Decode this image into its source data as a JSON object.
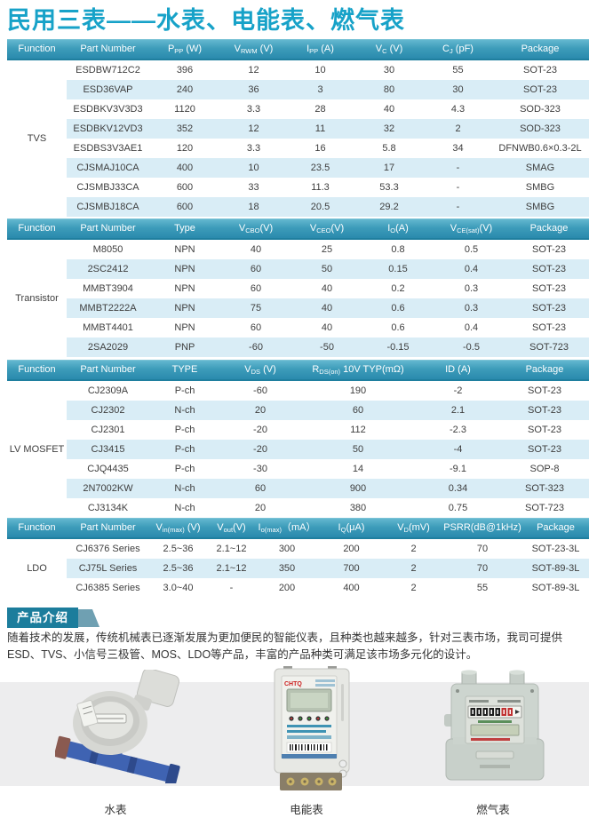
{
  "page": {
    "title": "民用三表——水表、电能表、燃气表"
  },
  "colors": {
    "accent": "#17a2c8",
    "table_header_top": "#63b7cf",
    "table_header_bottom": "#2a8aad",
    "row_stripe": "#d9edf6",
    "badge": "#1c7d9c",
    "image_band": "#ededee"
  },
  "tables": [
    {
      "function_label": "TVS",
      "header": [
        "Function",
        "Part Number",
        [
          "P",
          {
            "sub": "PP"
          },
          " (W)"
        ],
        [
          "V",
          {
            "sub": "RWM"
          },
          " (V)"
        ],
        [
          "I",
          {
            "sub": "PP"
          },
          " (A)"
        ],
        [
          "V",
          {
            "sub": "C"
          },
          " (V)"
        ],
        [
          "C",
          {
            "sub": "J"
          },
          " (pF)"
        ],
        "Package"
      ],
      "rows": [
        [
          "ESDBW712C2",
          "396",
          "12",
          "10",
          "30",
          "55",
          "SOT-23"
        ],
        [
          "ESD36VAP",
          "240",
          "36",
          "3",
          "80",
          "30",
          "SOT-23"
        ],
        [
          "ESDBKV3V3D3",
          "1120",
          "3.3",
          "28",
          "40",
          "4.3",
          "SOD-323"
        ],
        [
          "ESDBKV12VD3",
          "352",
          "12",
          "11",
          "32",
          "2",
          "SOD-323"
        ],
        [
          "ESDBS3V3AE1",
          "120",
          "3.3",
          "16",
          "5.8",
          "34",
          "DFNWB0.6×0.3-2L"
        ],
        [
          "CJSMAJ10CA",
          "400",
          "10",
          "23.5",
          "17",
          "-",
          "SMAG"
        ],
        [
          "CJSMBJ33CA",
          "600",
          "33",
          "11.3",
          "53.3",
          "-",
          "SMBG"
        ],
        [
          "CJSMBJ18CA",
          "600",
          "18",
          "20.5",
          "29.2",
          "-",
          "SMBG"
        ]
      ]
    },
    {
      "function_label": "Transistor",
      "header": [
        "Function",
        "Part Number",
        "Type",
        [
          "V",
          {
            "sub": "CBO"
          },
          "(V)"
        ],
        [
          "V",
          {
            "sub": "CEO"
          },
          "(V)"
        ],
        [
          "I",
          {
            "sub": "O"
          },
          "(A)"
        ],
        [
          "V",
          {
            "sub": "CE(sat)"
          },
          "(V)"
        ],
        "Package"
      ],
      "rows": [
        [
          "M8050",
          "NPN",
          "40",
          "25",
          "0.8",
          "0.5",
          "SOT-23"
        ],
        [
          "2SC2412",
          "NPN",
          "60",
          "50",
          "0.15",
          "0.4",
          "SOT-23"
        ],
        [
          "MMBT3904",
          "NPN",
          "60",
          "40",
          "0.2",
          "0.3",
          "SOT-23"
        ],
        [
          "MMBT2222A",
          "NPN",
          "75",
          "40",
          "0.6",
          "0.3",
          "SOT-23"
        ],
        [
          "MMBT4401",
          "NPN",
          "60",
          "40",
          "0.6",
          "0.4",
          "SOT-23"
        ],
        [
          "2SA2029",
          "PNP",
          "-60",
          "-50",
          "-0.15",
          "-0.5",
          "SOT-723"
        ]
      ]
    },
    {
      "function_label": "LV MOSFET",
      "header": [
        "Function",
        "Part Number",
        "TYPE",
        [
          "V",
          {
            "sub": "DS"
          },
          " (V)"
        ],
        [
          "R",
          {
            "sub": "DS(on)"
          },
          " 10V TYP(mΩ)"
        ],
        "ID (A)",
        "Package"
      ],
      "rows": [
        [
          "CJ2309A",
          "P-ch",
          "-60",
          "190",
          "-2",
          "SOT-23"
        ],
        [
          "CJ2302",
          "N-ch",
          "20",
          "60",
          "2.1",
          "SOT-23"
        ],
        [
          "CJ2301",
          "P-ch",
          "-20",
          "112",
          "-2.3",
          "SOT-23"
        ],
        [
          "CJ3415",
          "P-ch",
          "-20",
          "50",
          "-4",
          "SOT-23"
        ],
        [
          "CJQ4435",
          "P-ch",
          "-30",
          "14",
          "-9.1",
          "SOP-8"
        ],
        [
          "2N7002KW",
          "N-ch",
          "60",
          "900",
          "0.34",
          "SOT-323"
        ],
        [
          "CJ3134K",
          "N-ch",
          "20",
          "380",
          "0.75",
          "SOT-723"
        ]
      ]
    },
    {
      "function_label": "LDO",
      "header": [
        "Function",
        "Part Number",
        [
          "V",
          {
            "sub": "in(max)"
          },
          " (V)"
        ],
        [
          "V",
          {
            "sub": "out"
          },
          "(V)"
        ],
        [
          "I",
          {
            "sub": "o(max)"
          },
          "（mA）"
        ],
        [
          "I",
          {
            "sub": "Q"
          },
          "(μA)"
        ],
        [
          "V",
          {
            "sub": "D"
          },
          "(mV)"
        ],
        "PSRR(dB@1kHz)",
        "Package"
      ],
      "rows": [
        [
          "CJ6376 Series",
          "2.5~36",
          "2.1~12",
          "300",
          "200",
          "2",
          "70",
          "SOT-23-3L"
        ],
        [
          "CJ75L Series",
          "2.5~36",
          "2.1~12",
          "350",
          "700",
          "2",
          "70",
          "SOT-89-3L"
        ],
        [
          "CJ6385 Series",
          "3.0~40",
          "-",
          "200",
          "400",
          "2",
          "55",
          "SOT-89-3L"
        ]
      ]
    }
  ],
  "intro": {
    "badge": "产品介绍",
    "text": "随着技术的发展，传统机械表已逐渐发展为更加便民的智能仪表，且种类也越来越多，针对三表市场，我司可提供ESD、TVS、小信号三极管、MOS、LDO等产品，丰富的产品种类可满足该市场多元化的设计。"
  },
  "products": [
    {
      "label": "水表"
    },
    {
      "label": "电能表"
    },
    {
      "label": "燃气表"
    }
  ]
}
